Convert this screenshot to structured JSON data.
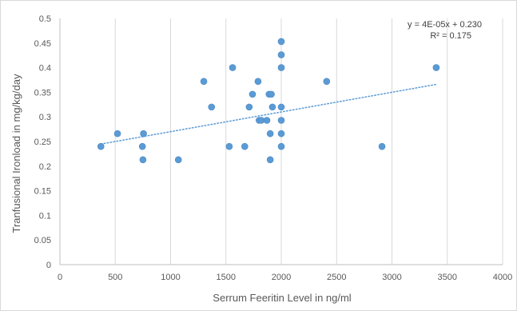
{
  "chart_data": {
    "type": "scatter",
    "title": "",
    "xlabel": "Serrum Feeritin Level in ng/ml",
    "ylabel": "Tranfusional Ironload in mg/kg/day",
    "xlim": [
      0,
      4000
    ],
    "ylim": [
      0,
      0.5
    ],
    "x_ticks": [
      "0",
      "500",
      "1000",
      "1500",
      "2000",
      "2500",
      "3000",
      "3500",
      "4000"
    ],
    "y_ticks": [
      "0",
      "0.05",
      "0.1",
      "0.15",
      "0.2",
      "0.25",
      "0.3",
      "0.35",
      "0.4",
      "0.45",
      "0.5"
    ],
    "grid": "vertical-gridlines",
    "points": [
      {
        "x": 370,
        "y": 0.24
      },
      {
        "x": 520,
        "y": 0.266
      },
      {
        "x": 745,
        "y": 0.24
      },
      {
        "x": 750,
        "y": 0.213
      },
      {
        "x": 755,
        "y": 0.266
      },
      {
        "x": 1070,
        "y": 0.213
      },
      {
        "x": 1300,
        "y": 0.372
      },
      {
        "x": 1370,
        "y": 0.32
      },
      {
        "x": 1530,
        "y": 0.24
      },
      {
        "x": 1560,
        "y": 0.4
      },
      {
        "x": 1670,
        "y": 0.24
      },
      {
        "x": 1710,
        "y": 0.32
      },
      {
        "x": 1740,
        "y": 0.346
      },
      {
        "x": 1790,
        "y": 0.372
      },
      {
        "x": 1800,
        "y": 0.293
      },
      {
        "x": 1820,
        "y": 0.293
      },
      {
        "x": 1870,
        "y": 0.293
      },
      {
        "x": 1890,
        "y": 0.346
      },
      {
        "x": 1900,
        "y": 0.213
      },
      {
        "x": 1900,
        "y": 0.266
      },
      {
        "x": 1910,
        "y": 0.346
      },
      {
        "x": 1920,
        "y": 0.32
      },
      {
        "x": 2000,
        "y": 0.453
      },
      {
        "x": 2000,
        "y": 0.426
      },
      {
        "x": 2000,
        "y": 0.4
      },
      {
        "x": 2000,
        "y": 0.32
      },
      {
        "x": 2000,
        "y": 0.293
      },
      {
        "x": 2000,
        "y": 0.266
      },
      {
        "x": 2000,
        "y": 0.24
      },
      {
        "x": 2410,
        "y": 0.372
      },
      {
        "x": 2910,
        "y": 0.24
      },
      {
        "x": 3400,
        "y": 0.4
      }
    ],
    "trendline": {
      "type": "linear",
      "slope": 4e-05,
      "intercept": 0.23,
      "x_start": 370,
      "x_end": 3400
    },
    "annotations": [
      "y = 4E-05x + 0.230",
      "R² = 0.175"
    ],
    "colors": {
      "points": "#5b9bd5",
      "trendline": "#5b9bd5",
      "gridline": "#d9d9d9",
      "axis": "#bfbfbf",
      "text": "#595959"
    }
  }
}
